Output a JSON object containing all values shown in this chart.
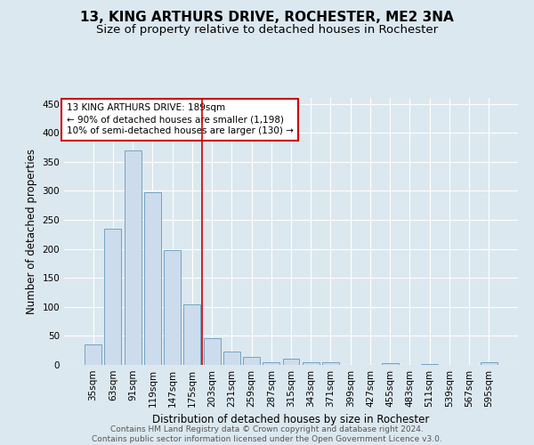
{
  "title": "13, KING ARTHURS DRIVE, ROCHESTER, ME2 3NA",
  "subtitle": "Size of property relative to detached houses in Rochester",
  "xlabel": "Distribution of detached houses by size in Rochester",
  "ylabel": "Number of detached properties",
  "bar_color": "#ccdcec",
  "bar_edge_color": "#6699bb",
  "background_color": "#dce8f0",
  "grid_color": "#ffffff",
  "categories": [
    "35sqm",
    "63sqm",
    "91sqm",
    "119sqm",
    "147sqm",
    "175sqm",
    "203sqm",
    "231sqm",
    "259sqm",
    "287sqm",
    "315sqm",
    "343sqm",
    "371sqm",
    "399sqm",
    "427sqm",
    "455sqm",
    "483sqm",
    "511sqm",
    "539sqm",
    "567sqm",
    "595sqm"
  ],
  "values": [
    35,
    235,
    370,
    298,
    198,
    105,
    46,
    23,
    14,
    5,
    11,
    5,
    4,
    0,
    0,
    3,
    0,
    1,
    0,
    0,
    4
  ],
  "vline_x": 6.0,
  "vline_color": "#cc0000",
  "annotation_text": "13 KING ARTHURS DRIVE: 189sqm\n← 90% of detached houses are smaller (1,198)\n10% of semi-detached houses are larger (130) →",
  "annotation_box_color": "#ffffff",
  "annotation_box_edge_color": "#cc0000",
  "ylim": [
    0,
    460
  ],
  "yticks": [
    0,
    50,
    100,
    150,
    200,
    250,
    300,
    350,
    400,
    450
  ],
  "footnote": "Contains HM Land Registry data © Crown copyright and database right 2024.\nContains public sector information licensed under the Open Government Licence v3.0.",
  "title_fontsize": 11,
  "subtitle_fontsize": 9.5,
  "ylabel_fontsize": 8.5,
  "xlabel_fontsize": 8.5,
  "tick_fontsize": 7.5,
  "annotation_fontsize": 7.5,
  "footnote_fontsize": 6.5
}
